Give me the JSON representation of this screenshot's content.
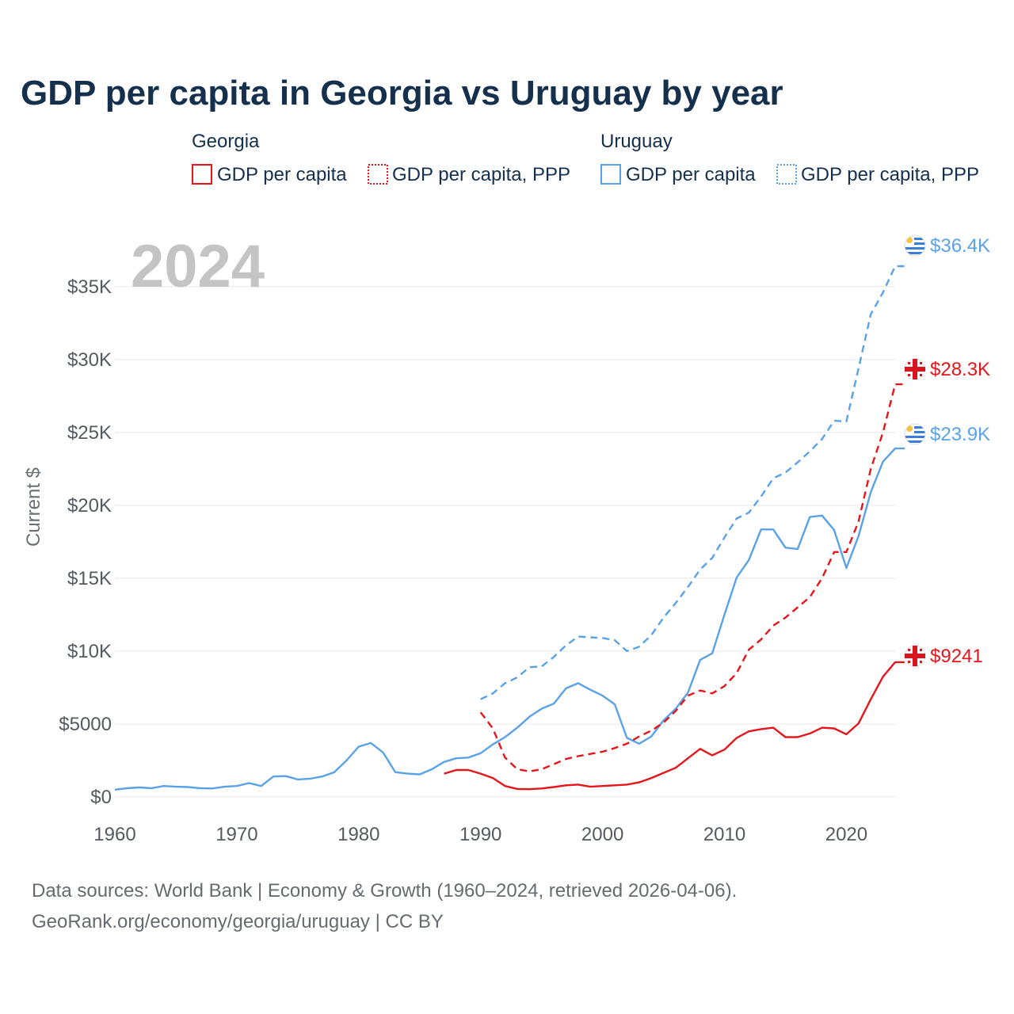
{
  "title": "GDP per capita in Georgia vs Uruguay by year",
  "year_label": "2024",
  "legend": {
    "groups": [
      {
        "name": "Georgia",
        "color": "#e3161b",
        "items": [
          {
            "label": "GDP per capita",
            "style": "solid"
          },
          {
            "label": "GDP per capita, PPP",
            "style": "dashed"
          }
        ]
      },
      {
        "name": "Uruguay",
        "color": "#5aa2e6",
        "items": [
          {
            "label": "GDP per capita",
            "style": "solid"
          },
          {
            "label": "GDP per capita, PPP",
            "style": "dashed"
          }
        ]
      }
    ]
  },
  "end_labels": {
    "uruguay_ppp": "$36.4K",
    "georgia_ppp": "$28.3K",
    "uruguay_gdp": "$23.9K",
    "georgia_gdp": "$9241"
  },
  "footer": {
    "line1": "Data sources: World Bank | Economy & Growth (1960–2024, retrieved 2026-04-06).",
    "line2": "GeoRank.org/economy/georgia/uruguay | CC BY"
  },
  "chart_data": {
    "type": "line",
    "title": "GDP per capita in Georgia vs Uruguay by year",
    "xlabel": "",
    "ylabel": "Current $",
    "xlim": [
      1960,
      2024
    ],
    "ylim": [
      0,
      37000
    ],
    "x_ticks": [
      1960,
      1970,
      1980,
      1990,
      2000,
      2010,
      2020
    ],
    "y_ticks": [
      {
        "value": 0,
        "label": "$0"
      },
      {
        "value": 5000,
        "label": "$5000"
      },
      {
        "value": 10000,
        "label": "$10K"
      },
      {
        "value": 15000,
        "label": "$15K"
      },
      {
        "value": 20000,
        "label": "$20K"
      },
      {
        "value": 25000,
        "label": "$25K"
      },
      {
        "value": 30000,
        "label": "$30K"
      },
      {
        "value": 35000,
        "label": "$35K"
      }
    ],
    "grid": true,
    "series": [
      {
        "name": "Uruguay GDP per capita",
        "country": "Uruguay",
        "style": "solid",
        "color": "#5aa2e6",
        "x": [
          1960,
          1961,
          1962,
          1963,
          1964,
          1965,
          1966,
          1967,
          1968,
          1969,
          1970,
          1971,
          1972,
          1973,
          1974,
          1975,
          1976,
          1977,
          1978,
          1979,
          1980,
          1981,
          1982,
          1983,
          1984,
          1985,
          1986,
          1987,
          1988,
          1989,
          1990,
          1991,
          1992,
          1993,
          1994,
          1995,
          1996,
          1997,
          1998,
          1999,
          2000,
          2001,
          2002,
          2003,
          2004,
          2005,
          2006,
          2007,
          2008,
          2009,
          2010,
          2011,
          2012,
          2013,
          2014,
          2015,
          2016,
          2017,
          2018,
          2019,
          2020,
          2021,
          2022,
          2023,
          2024
        ],
        "values": [
          500,
          600,
          650,
          600,
          750,
          700,
          680,
          600,
          580,
          700,
          750,
          950,
          750,
          1400,
          1430,
          1200,
          1250,
          1400,
          1700,
          2500,
          3450,
          3700,
          3050,
          1700,
          1600,
          1550,
          1900,
          2400,
          2650,
          2700,
          3000,
          3600,
          4100,
          4750,
          5500,
          6050,
          6400,
          7450,
          7800,
          7350,
          6950,
          6350,
          4050,
          3650,
          4150,
          5250,
          6050,
          7150,
          9400,
          9850,
          12500,
          15050,
          16250,
          18350,
          18350,
          17100,
          17000,
          19200,
          19300,
          18300,
          15700,
          17900,
          20900,
          23000,
          23900
        ]
      },
      {
        "name": "Uruguay GDP per capita, PPP",
        "country": "Uruguay",
        "style": "dashed",
        "color": "#5aa2e6",
        "x": [
          1990,
          1991,
          1992,
          1993,
          1994,
          1995,
          1996,
          1997,
          1998,
          1999,
          2000,
          2001,
          2002,
          2003,
          2004,
          2005,
          2006,
          2007,
          2008,
          2009,
          2010,
          2011,
          2012,
          2013,
          2014,
          2015,
          2016,
          2017,
          2018,
          2019,
          2020,
          2021,
          2022,
          2023,
          2024
        ],
        "values": [
          6700,
          7100,
          7800,
          8200,
          8900,
          8950,
          9600,
          10400,
          11000,
          10950,
          10900,
          10750,
          10000,
          10300,
          11100,
          12300,
          13300,
          14400,
          15600,
          16400,
          17800,
          19100,
          19500,
          20600,
          21850,
          22250,
          22950,
          23700,
          24550,
          25800,
          25750,
          29400,
          33100,
          34600,
          36400
        ]
      },
      {
        "name": "Georgia GDP per capita",
        "country": "Georgia",
        "style": "solid",
        "color": "#e3161b",
        "x": [
          1987,
          1988,
          1989,
          1990,
          1991,
          1992,
          1993,
          1994,
          1995,
          1996,
          1997,
          1998,
          1999,
          2000,
          2001,
          2002,
          2003,
          2004,
          2005,
          2006,
          2007,
          2008,
          2009,
          2010,
          2011,
          2012,
          2013,
          2014,
          2015,
          2016,
          2017,
          2018,
          2019,
          2020,
          2021,
          2022,
          2023,
          2024
        ],
        "values": [
          1600,
          1850,
          1850,
          1600,
          1300,
          750,
          550,
          530,
          580,
          680,
          800,
          850,
          700,
          750,
          800,
          850,
          1000,
          1300,
          1650,
          2000,
          2650,
          3300,
          2850,
          3250,
          4050,
          4500,
          4650,
          4750,
          4100,
          4100,
          4350,
          4750,
          4700,
          4300,
          5050,
          6700,
          8250,
          9241
        ]
      },
      {
        "name": "Georgia GDP per capita, PPP",
        "country": "Georgia",
        "style": "dashed",
        "color": "#e3161b",
        "x": [
          1990,
          1991,
          1992,
          1993,
          1994,
          1995,
          1996,
          1997,
          1998,
          1999,
          2000,
          2001,
          2002,
          2003,
          2004,
          2005,
          2006,
          2007,
          2008,
          2009,
          2010,
          2011,
          2012,
          2013,
          2014,
          2015,
          2016,
          2017,
          2018,
          2019,
          2020,
          2021,
          2022,
          2023,
          2024
        ],
        "values": [
          5800,
          4700,
          2700,
          1900,
          1750,
          1900,
          2250,
          2600,
          2800,
          2950,
          3100,
          3350,
          3650,
          4150,
          4550,
          5100,
          5900,
          6950,
          7300,
          7100,
          7600,
          8500,
          10100,
          10800,
          11750,
          12300,
          13000,
          13700,
          15000,
          16800,
          16800,
          18900,
          22500,
          25000,
          28300
        ]
      }
    ]
  }
}
